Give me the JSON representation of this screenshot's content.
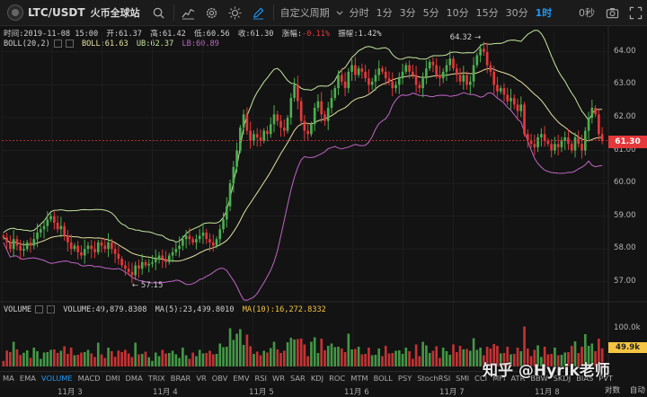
{
  "toolbar": {
    "symbol": "LTC/USDT",
    "exchange": "火币全球站",
    "custom_period": "自定义周期",
    "timeframes": [
      "分时",
      "1分",
      "3分",
      "5分",
      "10分",
      "15分",
      "30分",
      "1时"
    ],
    "active_timeframe": "1时",
    "countdown": "0秒",
    "icons": [
      "avatar-icon",
      "search-icon",
      "indicator-icon",
      "settings-icon",
      "sun-icon",
      "draw-icon",
      "chevron-down-icon",
      "camera-icon",
      "fullscreen-icon"
    ]
  },
  "info": {
    "time_label": "时间:2019-11-08 15:00",
    "open_label": "开:61.37",
    "high_label": "高:61.42",
    "low_label": "低:60.56",
    "close_label": "收:61.30",
    "change_label": "涨幅:",
    "change_value": "-0.11%",
    "amp_label": "振幅:1.42%"
  },
  "boll": {
    "name": "BOLL(20,2)",
    "mid_label": "BOLL:61.63",
    "ub_label": "UB:62.37",
    "lb_label": "LB:60.89"
  },
  "volume_info": {
    "name": "VOLUME",
    "vol_label": "VOLUME:49,879.8308",
    "ma5_label": "MA(5):23,499.8010",
    "ma10_label": "MA(10):16,272.8332"
  },
  "price_axis": [
    "64.00",
    "63.00",
    "62.00",
    "61.00",
    "60.00",
    "59.00",
    "58.00",
    "57.00"
  ],
  "volume_axis": [
    "100.0k"
  ],
  "last_price": "61.30",
  "last_volume": "49.9k",
  "high_marker": "64.32",
  "low_marker": "57.15",
  "x_axis": [
    "11月 3",
    "11月 4",
    "11月 5",
    "11月 6",
    "11月 7",
    "11月 8"
  ],
  "indicators": [
    "MA",
    "EMA",
    "VOLUME",
    "MACD",
    "DMI",
    "DMA",
    "TRIX",
    "BRAR",
    "VR",
    "OBV",
    "EMV",
    "RSI",
    "WR",
    "SAR",
    "KDJ",
    "ROC",
    "MTM",
    "BOLL",
    "PSY",
    "StochRSI",
    "SMI",
    "CCI",
    "MFI",
    "ATR",
    "BBW",
    "SKDJ",
    "BIAS",
    "PVT"
  ],
  "active_indicator": "VOLUME",
  "bottom_right": [
    "对数",
    "自动"
  ],
  "watermark": "知乎 @Hyrik老师",
  "colors": {
    "up": "#4caf50",
    "down": "#e5383b",
    "boll_mid": "#e3e0a0",
    "boll_ub": "#c5e6a0",
    "boll_lb": "#c066c6",
    "accent": "#2196f3"
  },
  "chart_data": {
    "type": "candlestick",
    "title": "LTC/USDT 1h",
    "ylim": [
      56.5,
      64.6
    ],
    "close": [
      58.35,
      58.2,
      58.0,
      58.3,
      58.1,
      57.95,
      58.0,
      58.2,
      58.1,
      58.3,
      58.5,
      58.6,
      58.7,
      58.9,
      59.0,
      58.8,
      58.6,
      58.7,
      58.4,
      58.2,
      58.0,
      58.1,
      57.9,
      57.8,
      58.0,
      58.1,
      58.0,
      57.9,
      58.2,
      58.1,
      58.0,
      58.2,
      58.0,
      57.85,
      57.7,
      57.5,
      57.4,
      57.3,
      57.2,
      57.5,
      57.4,
      57.6,
      57.5,
      57.55,
      57.6,
      57.7,
      57.8,
      57.7,
      57.6,
      57.8,
      57.9,
      58.0,
      58.1,
      58.3,
      58.4,
      58.3,
      58.2,
      58.3,
      58.4,
      58.5,
      58.3,
      58.2,
      58.1,
      58.3,
      58.6,
      58.9,
      59.3,
      60.0,
      60.5,
      61.0,
      61.7,
      62.1,
      61.6,
      61.3,
      61.5,
      61.4,
      61.3,
      61.6,
      61.5,
      61.8,
      62.1,
      61.9,
      61.7,
      61.6,
      62.0,
      62.6,
      63.0,
      62.5,
      61.9,
      61.6,
      61.5,
      61.8,
      62.3,
      62.5,
      62.1,
      61.9,
      62.3,
      62.6,
      62.9,
      63.3,
      63.1,
      62.9,
      63.4,
      63.6,
      63.3,
      63.5,
      63.4,
      63.2,
      63.0,
      63.1,
      63.3,
      63.5,
      63.4,
      63.2,
      63.1,
      62.9,
      63.0,
      63.2,
      63.4,
      63.6,
      63.4,
      63.3,
      63.0,
      62.9,
      63.2,
      63.5,
      63.7,
      63.6,
      63.3,
      63.2,
      63.4,
      63.6,
      63.8,
      63.5,
      63.3,
      63.1,
      63.3,
      63.0,
      63.1,
      63.6,
      63.9,
      64.1,
      64.0,
      63.6,
      63.4,
      63.0,
      62.8,
      62.9,
      62.7,
      62.5,
      62.6,
      62.4,
      62.2,
      62.4,
      61.5,
      61.3,
      61.2,
      61.1,
      61.4,
      61.5,
      61.3,
      61.2,
      61.0,
      61.2,
      61.1,
      61.3,
      61.4,
      61.2,
      61.0,
      61.4,
      61.2,
      61.0,
      61.6,
      62.0,
      62.3,
      62.1,
      61.5,
      61.3
    ]
  }
}
